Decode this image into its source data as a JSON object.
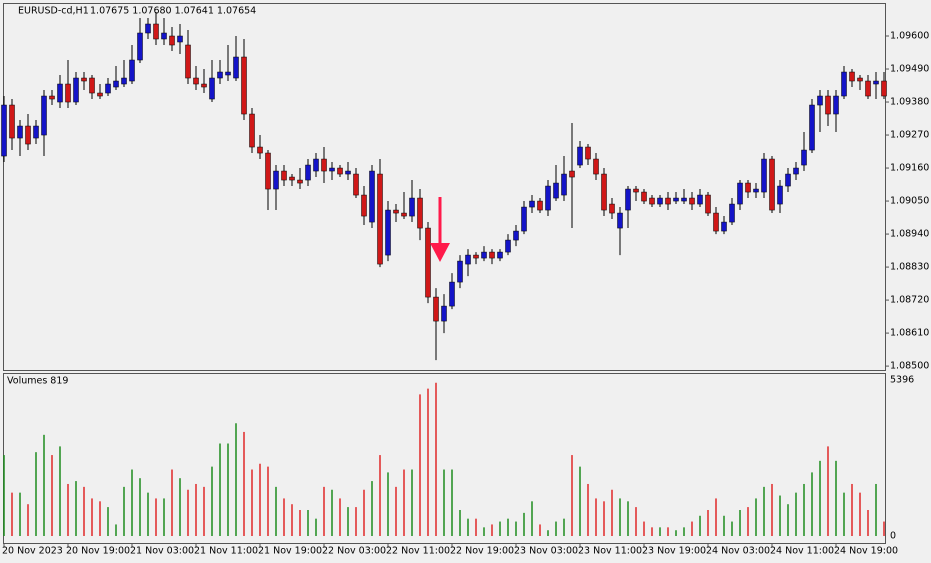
{
  "chart_data": [
    {
      "type": "candlestick",
      "symbol": "EURUSD-cd,H1",
      "header": "1.07675 1.07680 1.07641 1.07654",
      "up_color": "#1414c8",
      "down_color": "#d01818",
      "wick_color": "#000000",
      "ylim": [
        1.08487,
        1.0971
      ],
      "yticks": [
        {
          "value": 1.096,
          "label": "1.09600"
        },
        {
          "value": 1.0949,
          "label": "1.09490"
        },
        {
          "value": 1.0938,
          "label": "1.09380"
        },
        {
          "value": 1.0927,
          "label": "1.09270"
        },
        {
          "value": 1.0916,
          "label": "1.09160"
        },
        {
          "value": 1.0905,
          "label": "1.09050"
        },
        {
          "value": 1.0894,
          "label": "1.08940"
        },
        {
          "value": 1.0883,
          "label": "1.08830"
        },
        {
          "value": 1.0872,
          "label": "1.08720"
        },
        {
          "value": 1.0861,
          "label": "1.08610"
        },
        {
          "value": 1.085,
          "label": "1.08500"
        }
      ],
      "categories": [
        "20 Nov 2023",
        null,
        null,
        null,
        null,
        null,
        null,
        null,
        "20 Nov 19:00",
        null,
        null,
        null,
        null,
        null,
        null,
        null,
        "21 Nov 03:00",
        null,
        null,
        null,
        null,
        null,
        null,
        null,
        "21 Nov 11:00",
        null,
        null,
        null,
        null,
        null,
        null,
        null,
        "21 Nov 19:00",
        null,
        null,
        null,
        null,
        null,
        null,
        null,
        "22 Nov 03:00",
        null,
        null,
        null,
        null,
        null,
        null,
        null,
        "22 Nov 11:00",
        null,
        null,
        null,
        null,
        null,
        null,
        null,
        "22 Nov 19:00",
        null,
        null,
        null,
        null,
        null,
        null,
        null,
        "23 Nov 03:00",
        null,
        null,
        null,
        null,
        null,
        null,
        null,
        "23 Nov 11:00",
        null,
        null,
        null,
        null,
        null,
        null,
        null,
        "23 Nov 19:00",
        null,
        null,
        null,
        null,
        null,
        null,
        null,
        "24 Nov 03:00",
        null,
        null,
        null,
        null,
        null,
        null,
        null,
        "24 Nov 11:00",
        null,
        null,
        null,
        null,
        null,
        null,
        null,
        "24 Nov 19:00",
        null,
        null,
        null,
        null,
        null,
        null
      ],
      "open": [
        1.092,
        1.0937,
        1.0926,
        1.093,
        1.0926,
        1.0927,
        1.094,
        1.0938,
        1.0944,
        1.0938,
        1.0946,
        1.0946,
        1.0941,
        1.0941,
        1.0943,
        1.0944,
        1.0945,
        1.0952,
        1.0961,
        1.0964,
        1.0959,
        1.096,
        1.0958,
        1.0957,
        1.0946,
        1.0944,
        1.0939,
        1.0946,
        1.0947,
        1.0946,
        1.0953,
        1.0934,
        1.0923,
        1.0921,
        1.0909,
        1.0915,
        1.0913,
        1.0912,
        1.0912,
        1.0915,
        1.0919,
        1.0915,
        1.0916,
        1.0914,
        1.0914,
        1.0907,
        1.0898,
        1.0914,
        1.0887,
        1.0902,
        1.0901,
        1.09,
        1.0906,
        1.0896,
        1.0873,
        1.0865,
        1.087,
        1.0878,
        1.0884,
        1.0887,
        1.0886,
        1.0888,
        1.0886,
        1.0888,
        1.0892,
        1.0895,
        1.0903,
        1.0905,
        1.0902,
        1.0906,
        1.0907,
        1.0915,
        1.0917,
        1.0923,
        1.0919,
        1.0914,
        1.0904,
        1.0896,
        1.0902,
        1.0909,
        1.0908,
        1.0906,
        1.0904,
        1.0906,
        1.0905,
        1.0905,
        1.0906,
        1.0904,
        1.0907,
        1.0901,
        1.0895,
        1.0898,
        1.0904,
        1.0911,
        1.0908,
        1.0908,
        1.0919,
        1.0904,
        1.091,
        1.0914,
        1.0917,
        1.0922,
        1.0937,
        1.094,
        1.0934,
        1.094,
        1.0948,
        1.0946,
        1.0945,
        1.0944,
        1.0945
      ],
      "high": [
        1.094,
        1.0939,
        1.0932,
        1.0934,
        1.0932,
        1.0942,
        1.0942,
        1.0947,
        1.0952,
        1.0948,
        1.0948,
        1.0947,
        1.0944,
        1.0946,
        1.095,
        1.0952,
        1.0957,
        1.0966,
        1.0966,
        1.0968,
        1.0966,
        1.0963,
        1.0964,
        1.0962,
        1.095,
        1.0949,
        1.0952,
        1.0952,
        1.0957,
        1.096,
        1.0959,
        1.0936,
        1.0927,
        1.0922,
        1.0917,
        1.0917,
        1.0914,
        1.0916,
        1.0919,
        1.0921,
        1.0923,
        1.0918,
        1.0917,
        1.0918,
        1.0916,
        1.091,
        1.0917,
        1.0919,
        1.0905,
        1.0904,
        1.0908,
        1.0912,
        1.0909,
        1.0898,
        1.0876,
        1.0874,
        1.0881,
        1.0887,
        1.0889,
        1.0888,
        1.089,
        1.0889,
        1.0889,
        1.0894,
        1.0897,
        1.0905,
        1.0907,
        1.0906,
        1.0912,
        1.0917,
        1.092,
        1.0931,
        1.0925,
        1.0924,
        1.0921,
        1.0916,
        1.0906,
        1.0903,
        1.091,
        1.091,
        1.0909,
        1.0907,
        1.0907,
        1.0908,
        1.0908,
        1.0909,
        1.0908,
        1.0909,
        1.0908,
        1.0903,
        1.09,
        1.0906,
        1.0912,
        1.0912,
        1.0911,
        1.0921,
        1.092,
        1.0912,
        1.0916,
        1.0918,
        1.0928,
        1.0939,
        1.0942,
        1.0942,
        1.0942,
        1.095,
        1.0949,
        1.0947,
        1.0947,
        1.0948,
        1.0948
      ],
      "low": [
        1.0918,
        1.0922,
        1.092,
        1.0922,
        1.0924,
        1.092,
        1.0937,
        1.0936,
        1.0936,
        1.0937,
        1.0942,
        1.0939,
        1.0939,
        1.094,
        1.0942,
        1.0943,
        1.0944,
        1.0951,
        1.0959,
        1.0957,
        1.0957,
        1.0955,
        1.0954,
        1.0944,
        1.0942,
        1.0941,
        1.0938,
        1.0944,
        1.0945,
        1.0945,
        1.0932,
        1.0921,
        1.0919,
        1.0902,
        1.0902,
        1.091,
        1.091,
        1.0909,
        1.091,
        1.0913,
        1.0911,
        1.0912,
        1.0913,
        1.0912,
        1.0906,
        1.0897,
        1.0896,
        1.0883,
        1.0885,
        1.0898,
        1.0899,
        1.0898,
        1.0892,
        1.0871,
        1.0852,
        1.0861,
        1.0869,
        1.0876,
        1.088,
        1.0884,
        1.0885,
        1.0884,
        1.0885,
        1.0887,
        1.089,
        1.0894,
        1.0901,
        1.0901,
        1.09,
        1.0905,
        1.0905,
        1.0896,
        1.0916,
        1.0917,
        1.0912,
        1.09,
        1.0899,
        1.0887,
        1.0896,
        1.0905,
        1.0904,
        1.0903,
        1.0903,
        1.0902,
        1.0904,
        1.0904,
        1.0902,
        1.0903,
        1.09,
        1.0894,
        1.0894,
        1.0897,
        1.0902,
        1.0906,
        1.0906,
        1.0906,
        1.0901,
        1.0901,
        1.0908,
        1.0912,
        1.0915,
        1.0921,
        1.0928,
        1.093,
        1.0928,
        1.0939,
        1.0943,
        1.0942,
        1.0939,
        1.0939,
        1.0939
      ],
      "close": [
        1.0937,
        1.0926,
        1.093,
        1.0924,
        1.093,
        1.094,
        1.0939,
        1.0944,
        1.0938,
        1.0946,
        1.0945,
        1.0941,
        1.094,
        1.0944,
        1.0945,
        1.0946,
        1.0952,
        1.0961,
        1.0964,
        1.0959,
        1.0961,
        1.0957,
        1.096,
        1.0946,
        1.0944,
        1.0943,
        1.0946,
        1.0948,
        1.0948,
        1.0953,
        1.0934,
        1.0923,
        1.0921,
        1.0909,
        1.0915,
        1.0912,
        1.0912,
        1.0911,
        1.0917,
        1.0919,
        1.0915,
        1.0916,
        1.0914,
        1.0915,
        1.0907,
        1.09,
        1.0915,
        1.0884,
        1.0902,
        1.0901,
        1.09,
        1.0906,
        1.0896,
        1.0873,
        1.0865,
        1.087,
        1.0878,
        1.0885,
        1.0887,
        1.0886,
        1.0888,
        1.0886,
        1.0888,
        1.0892,
        1.0895,
        1.0903,
        1.0905,
        1.0902,
        1.091,
        1.0911,
        1.0914,
        1.0913,
        1.0923,
        1.0919,
        1.0914,
        1.0902,
        1.0901,
        1.0901,
        1.0909,
        1.0908,
        1.0905,
        1.0904,
        1.0906,
        1.0904,
        1.0906,
        1.0906,
        1.0904,
        1.0907,
        1.0901,
        1.0895,
        1.0898,
        1.0904,
        1.0911,
        1.0908,
        1.0909,
        1.0919,
        1.0902,
        1.091,
        1.0914,
        1.0916,
        1.0922,
        1.0937,
        1.094,
        1.0934,
        1.094,
        1.0948,
        1.0945,
        1.0945,
        1.094,
        1.0945,
        1.094
      ]
    },
    {
      "type": "volume",
      "title": "Volumes 819",
      "up_color": "#1e8c1e",
      "down_color": "#e02828",
      "ylim": [
        -242,
        5604
      ],
      "yticks": [
        5396,
        0
      ],
      "values": [
        2800,
        1500,
        1500,
        1100,
        2900,
        3500,
        2800,
        3100,
        1800,
        1900,
        1700,
        1300,
        1200,
        1000,
        400,
        1700,
        2300,
        2000,
        1500,
        1300,
        1300,
        2300,
        2000,
        1600,
        1800,
        1700,
        2400,
        3200,
        3200,
        3900,
        3600,
        2300,
        2500,
        2400,
        1700,
        1300,
        1100,
        900,
        900,
        600,
        1700,
        1600,
        1300,
        1000,
        1000,
        1600,
        1900,
        2800,
        2200,
        1700,
        2300,
        2300,
        4900,
        5100,
        5300,
        2300,
        2300,
        900,
        600,
        600,
        300,
        400,
        500,
        600,
        500,
        800,
        1200,
        400,
        200,
        500,
        600,
        2800,
        2400,
        1800,
        1300,
        1200,
        1600,
        1300,
        1200,
        1000,
        500,
        300,
        300,
        300,
        200,
        300,
        500,
        700,
        900,
        1300,
        700,
        500,
        900,
        1000,
        1300,
        1700,
        1800,
        1400,
        1100,
        1500,
        1800,
        2200,
        2600,
        3100,
        2600,
        1500,
        1800,
        1500,
        900,
        1800,
        500
      ]
    }
  ]
}
